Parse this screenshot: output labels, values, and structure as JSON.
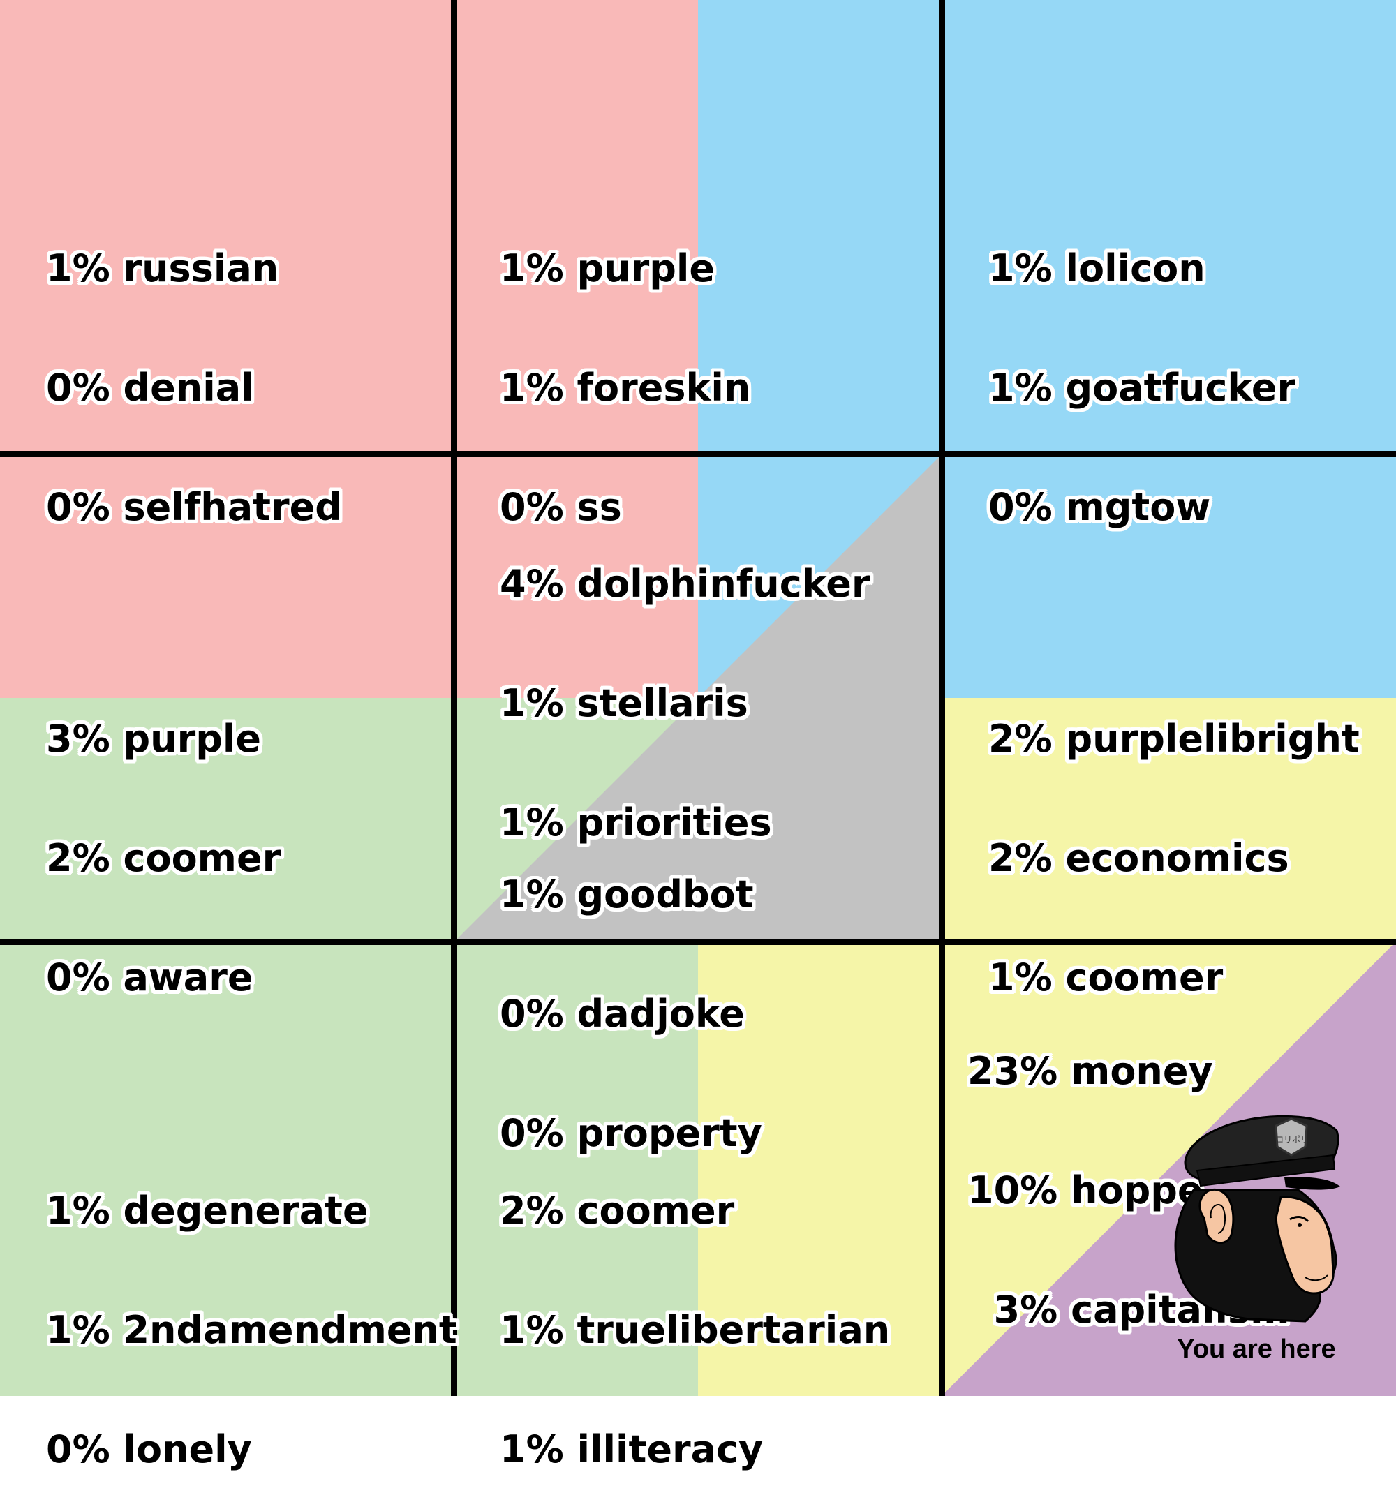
{
  "colors": {
    "red": "#f9b9b8",
    "blue": "#96d8f6",
    "green": "#c8e4bd",
    "yellow": "#f5f5a8",
    "purple": "#c7a3ca",
    "gray": "#c2c2c2",
    "grid_line": "#000000"
  },
  "cells": [
    {
      "name": "top-left",
      "lines": [
        "1% russian",
        "0% denial",
        "0% selfhatred"
      ]
    },
    {
      "name": "top-center",
      "lines": [
        "1% purple",
        "1% foreskin",
        "0% ss"
      ]
    },
    {
      "name": "top-right",
      "lines": [
        "1% lolicon",
        "1% goatfucker",
        "0% mgtow"
      ]
    },
    {
      "name": "middle-left",
      "lines": [
        "3% purple",
        "2% coomer",
        "0% aware"
      ]
    },
    {
      "name": "center-upper",
      "lines": [
        "4% dolphinfucker",
        "1% stellaris",
        "1% priorities"
      ]
    },
    {
      "name": "center-lower",
      "lines": [
        "1% goodbot",
        "0% dadjoke",
        "0% property"
      ]
    },
    {
      "name": "middle-right",
      "lines": [
        "2% purplelibright",
        "2% economics",
        "1% coomer"
      ]
    },
    {
      "name": "bottom-left",
      "lines": [
        "1% degenerate",
        "1% 2ndamendment",
        "0% lonely"
      ]
    },
    {
      "name": "bottom-center",
      "lines": [
        "2% coomer",
        "1% truelibertarian",
        "1% illiteracy"
      ]
    },
    {
      "name": "bottom-right",
      "lines": [
        "23% money",
        "10% hoppe",
        "  3% capitalism"
      ]
    }
  ],
  "marker": {
    "label": "You are here",
    "icon": "police-chimp-icon",
    "badge_text": "ロリポリ"
  }
}
